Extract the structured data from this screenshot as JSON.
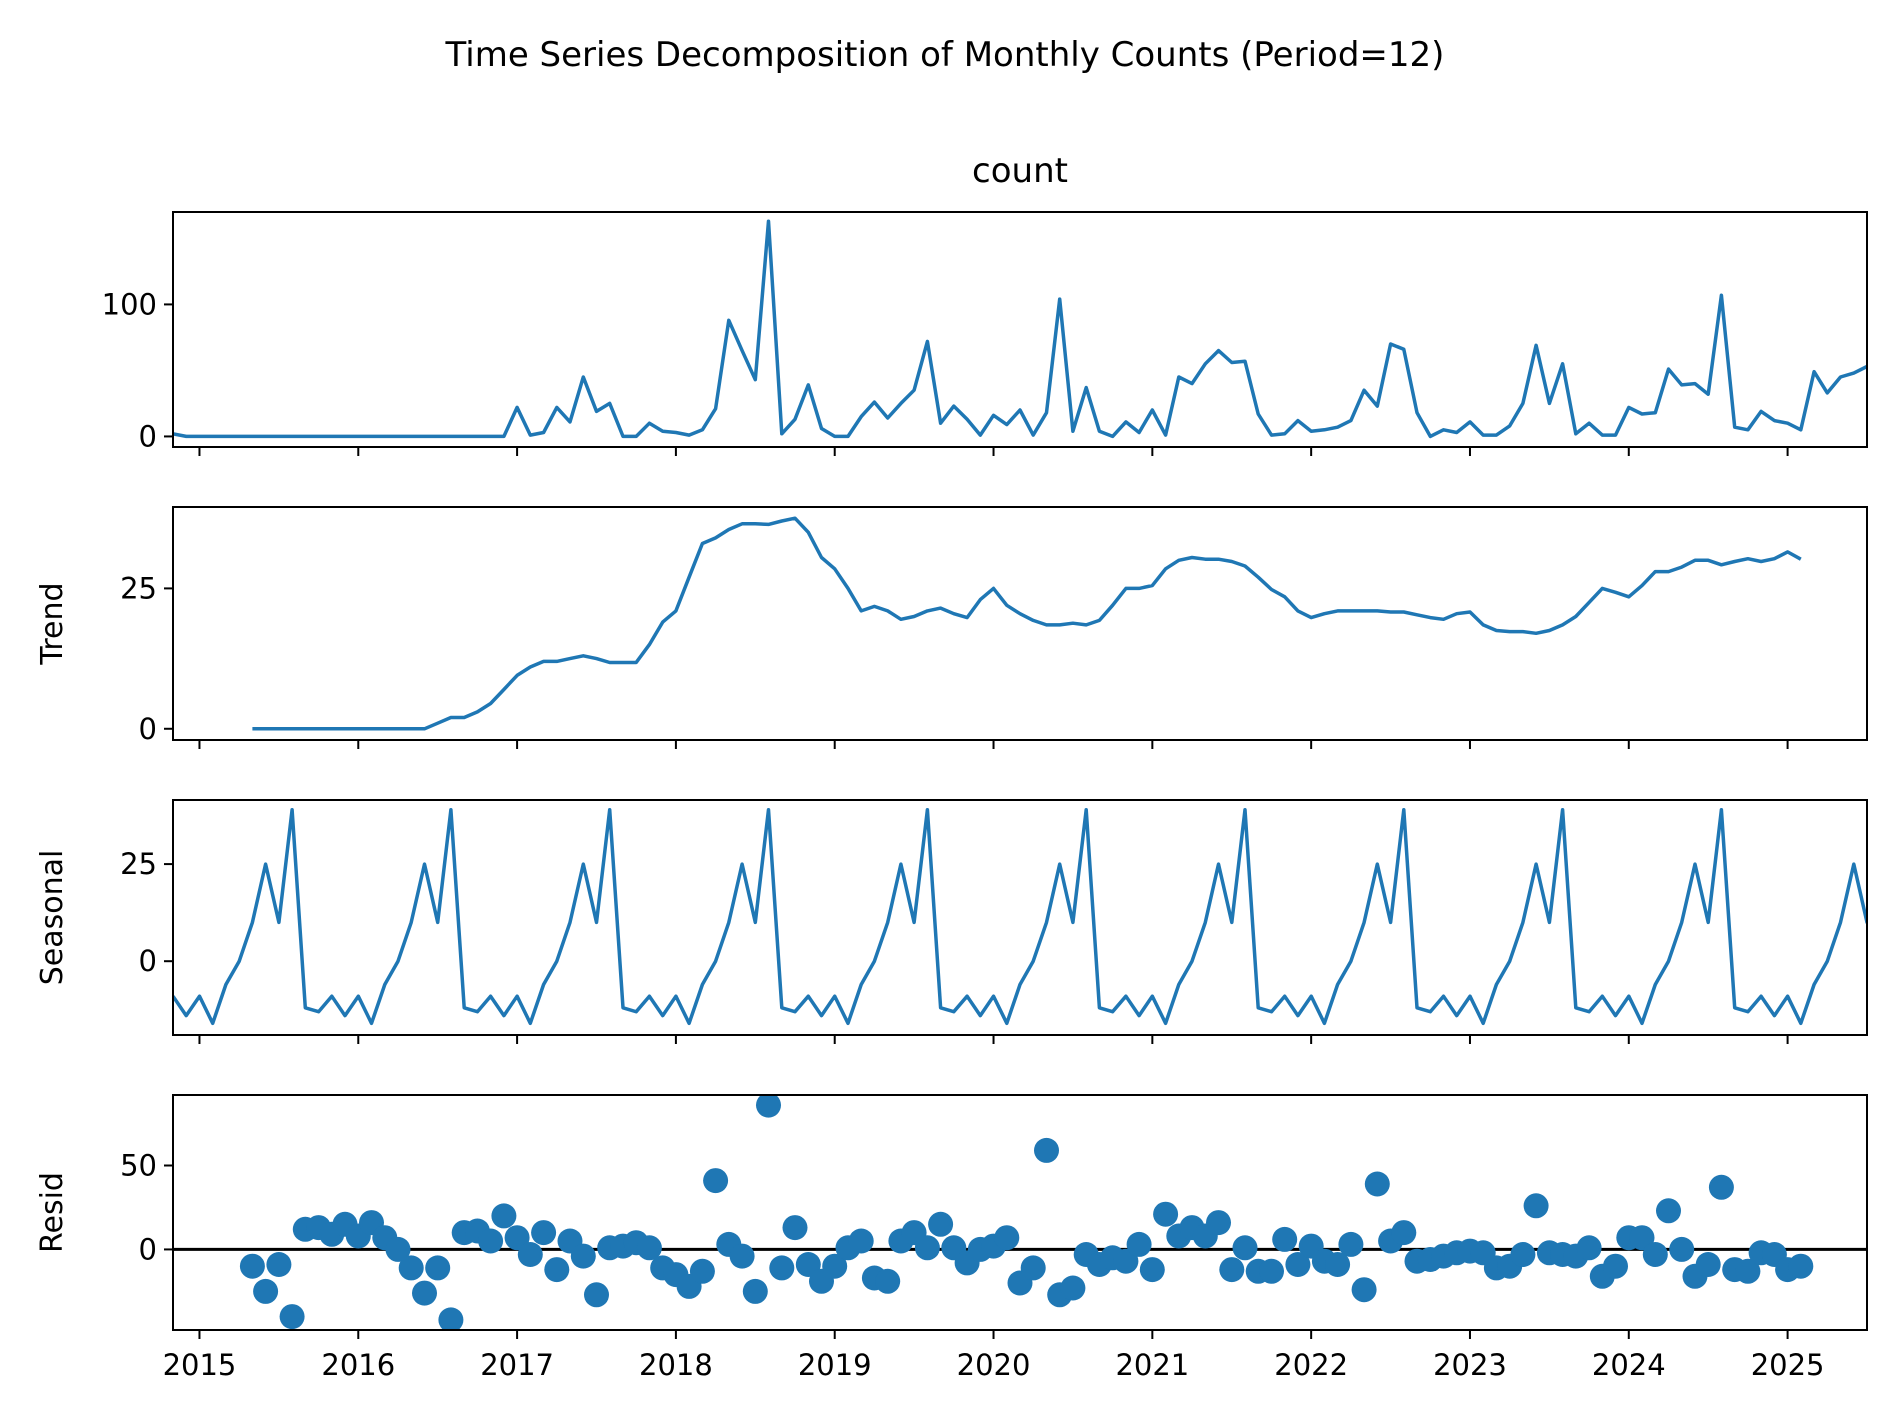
{
  "chart_data": {
    "type": "line",
    "title": "Time Series Decomposition of Monthly Counts (Period=12)",
    "x_start": "2014-11",
    "x_end": "2025-07",
    "x_ticks": [
      "2015",
      "2016",
      "2017",
      "2018",
      "2019",
      "2020",
      "2021",
      "2022",
      "2023",
      "2024",
      "2025"
    ],
    "colors": {
      "series": "#1f77b4",
      "zero_line": "#000000"
    },
    "panels": [
      {
        "id": "count",
        "title": "count",
        "ylabel": "",
        "kind": "line",
        "ylim": [
          -8,
          170
        ],
        "yticks": [
          0,
          100
        ],
        "values": [
          2,
          0,
          0,
          0,
          0,
          0,
          0,
          0,
          0,
          0,
          0,
          0,
          0,
          0,
          0,
          0,
          0,
          0,
          0,
          0,
          0,
          0,
          0,
          0,
          0,
          0,
          22,
          1,
          3,
          22,
          11,
          45,
          19,
          25,
          0,
          0,
          10,
          4,
          3,
          1,
          5,
          21,
          88,
          65,
          43,
          163,
          2,
          13,
          39,
          6,
          0,
          0,
          15,
          26,
          14,
          25,
          35,
          72,
          10,
          23,
          13,
          1,
          16,
          9,
          20,
          1,
          18,
          104,
          4,
          37,
          4,
          0,
          11,
          3,
          20,
          1,
          45,
          40,
          55,
          65,
          56,
          57,
          17,
          1,
          2,
          12,
          4,
          5,
          7,
          12,
          35,
          23,
          70,
          66,
          18,
          0,
          5,
          3,
          11,
          1,
          1,
          8,
          25,
          69,
          25,
          55,
          2,
          10,
          1,
          1,
          22,
          17,
          18,
          51,
          39,
          40,
          32,
          107,
          7,
          5,
          19,
          12,
          10,
          5,
          49,
          33,
          45,
          48,
          53,
          54
        ]
      },
      {
        "id": "trend",
        "title": "",
        "ylabel": "Trend",
        "kind": "line",
        "start_index": 6,
        "ylim": [
          -2,
          39.5
        ],
        "yticks": [
          0,
          25
        ],
        "values": [
          0,
          0,
          0,
          0,
          0,
          0,
          0,
          0,
          0,
          0,
          0,
          0,
          0,
          0,
          1,
          2,
          2,
          3,
          4.5,
          7,
          9.5,
          11,
          12,
          12,
          12.5,
          13,
          12.5,
          11.8,
          11.8,
          11.8,
          15,
          19,
          21,
          27,
          33,
          34,
          35.5,
          36.5,
          36.5,
          36.4,
          37,
          37.5,
          35,
          30.5,
          28.5,
          25,
          21,
          21.8,
          21,
          19.5,
          20,
          21,
          21.5,
          20.5,
          19.8,
          23,
          25,
          22,
          20.5,
          19.3,
          18.5,
          18.5,
          18.8,
          18.5,
          19.3,
          22,
          25,
          25,
          25.5,
          28.5,
          30,
          30.5,
          30.2,
          30.2,
          29.8,
          29,
          27,
          24.8,
          23.5,
          21,
          19.8,
          20.5,
          21,
          21,
          21,
          21,
          20.8,
          20.8,
          20.3,
          19.8,
          19.5,
          20.5,
          20.8,
          18.5,
          17.5,
          17.3,
          17.3,
          17,
          17.5,
          18.5,
          20,
          22.5,
          25,
          24.3,
          23.5,
          25.5,
          28,
          28,
          28.8,
          30,
          30,
          29.2,
          29.8,
          30.3,
          29.8,
          30.3,
          31.5,
          30.2
        ]
      },
      {
        "id": "seasonal",
        "title": "",
        "ylabel": "Seasonal",
        "kind": "line",
        "ylim": [
          -19,
          41.5
        ],
        "yticks": [
          0,
          25
        ],
        "pattern": [
          -14,
          -9,
          -16,
          -6,
          0,
          10,
          25,
          10,
          39,
          -12,
          -13,
          -9
        ],
        "values": [
          -9,
          -14,
          -9,
          -16,
          -6,
          0,
          10,
          25,
          10,
          39,
          -12,
          -13,
          -9,
          -14,
          -9,
          -16,
          -6,
          0,
          10,
          25,
          10,
          39,
          -12,
          -13,
          -9,
          -14,
          -9,
          -16,
          -6,
          0,
          10,
          25,
          10,
          39,
          -12,
          -13,
          -9,
          -14,
          -9,
          -16,
          -6,
          0,
          10,
          25,
          10,
          39,
          -12,
          -13,
          -9,
          -14,
          -9,
          -16,
          -6,
          0,
          10,
          25,
          10,
          39,
          -12,
          -13,
          -9,
          -14,
          -9,
          -16,
          -6,
          0,
          10,
          25,
          10,
          39,
          -12,
          -13,
          -9,
          -14,
          -9,
          -16,
          -6,
          0,
          10,
          25,
          10,
          39,
          -12,
          -13,
          -9,
          -14,
          -9,
          -16,
          -6,
          0,
          10,
          25,
          10,
          39,
          -12,
          -13,
          -9,
          -14,
          -9,
          -16,
          -6,
          0,
          10,
          25,
          10,
          39,
          -12,
          -13,
          -9,
          -14,
          -9,
          -16,
          -6,
          0,
          10,
          25,
          10,
          39,
          -12,
          -13,
          -9,
          -14,
          -9,
          -16,
          -6,
          0,
          10,
          25,
          10,
          39,
          -12,
          -13,
          -9,
          -14,
          -9,
          -16,
          -6,
          0,
          10,
          25,
          10,
          39
        ]
      },
      {
        "id": "resid",
        "title": "",
        "ylabel": "Resid",
        "kind": "scatter",
        "start_index": 6,
        "zero_line": true,
        "ylim": [
          -48,
          92
        ],
        "yticks": [
          0,
          50
        ],
        "values": [
          -10,
          -25,
          -9,
          -40,
          12,
          13,
          9,
          15,
          8,
          16,
          7,
          0,
          -11,
          -26,
          -11,
          -42,
          10,
          11,
          5,
          20,
          7,
          -3,
          10,
          -12,
          5,
          -4,
          -27,
          1,
          2,
          4,
          1,
          -11,
          -15,
          -22,
          -13,
          41,
          3,
          -4,
          -25,
          86,
          -11,
          13,
          -9,
          -19,
          -10,
          1,
          5,
          -17,
          -19,
          5,
          10,
          1,
          15,
          1,
          -8,
          0,
          2,
          7,
          -20,
          -11,
          59,
          -27,
          -23,
          -3,
          -9,
          -5,
          -7,
          3,
          -12,
          21,
          8,
          13,
          8,
          16,
          -12,
          1,
          -13,
          -13,
          6,
          -9,
          2,
          -7,
          -9,
          3,
          -24,
          39,
          5,
          10,
          -7,
          -6,
          -4,
          -2,
          -1,
          -2,
          -11,
          -10,
          -3,
          26,
          -2,
          -3,
          -4,
          1,
          -16,
          -10,
          7,
          7,
          -3,
          23,
          0,
          -16,
          -9,
          37,
          -12,
          -13,
          -2,
          -3,
          -12,
          -10
        ]
      }
    ]
  }
}
